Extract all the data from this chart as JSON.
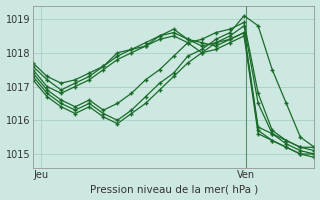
{
  "title": "",
  "xlabel": "Pression niveau de la mer( hPa )",
  "ylabel": "",
  "background_color": "#cce8e0",
  "grid_color": "#a8cfc8",
  "line_color": "#1a6b2a",
  "ylim": [
    1014.6,
    1019.4
  ],
  "xlim": [
    0,
    33
  ],
  "xtick_positions": [
    1,
    25
  ],
  "xtick_labels": [
    "Jeu",
    "Ven"
  ],
  "ytick_positions": [
    1015,
    1016,
    1017,
    1018,
    1019
  ],
  "series": [
    [
      1017.7,
      1017.3,
      1017.1,
      1017.2,
      1017.4,
      1017.6,
      1018.0,
      1018.1,
      1018.3,
      1018.5,
      1018.6,
      1018.4,
      1018.3,
      1018.2,
      1018.4,
      1018.6,
      1015.8,
      1015.6,
      1015.4,
      1015.2,
      1015.1
    ],
    [
      1017.5,
      1017.0,
      1016.8,
      1017.0,
      1017.2,
      1017.5,
      1017.8,
      1018.0,
      1018.2,
      1018.4,
      1018.5,
      1018.3,
      1018.0,
      1018.1,
      1018.3,
      1018.5,
      1015.6,
      1015.4,
      1015.2,
      1015.0,
      1014.9
    ],
    [
      1017.6,
      1017.2,
      1016.9,
      1017.1,
      1017.3,
      1017.6,
      1017.9,
      1018.1,
      1018.2,
      1018.5,
      1018.7,
      1018.4,
      1018.2,
      1018.3,
      1018.4,
      1018.6,
      1015.7,
      1015.4,
      1015.2,
      1015.0,
      1015.0
    ],
    [
      1017.4,
      1016.9,
      1016.6,
      1016.4,
      1016.6,
      1016.3,
      1016.5,
      1016.8,
      1017.2,
      1017.5,
      1017.9,
      1018.3,
      1018.4,
      1018.6,
      1018.7,
      1018.9,
      1016.8,
      1015.7,
      1015.4,
      1015.2,
      1015.2
    ],
    [
      1017.3,
      1016.8,
      1016.5,
      1016.3,
      1016.5,
      1016.2,
      1016.0,
      1016.3,
      1016.7,
      1017.1,
      1017.4,
      1017.9,
      1018.1,
      1018.4,
      1018.6,
      1019.1,
      1018.8,
      1017.5,
      1016.5,
      1015.5,
      1015.2
    ],
    [
      1017.2,
      1016.7,
      1016.4,
      1016.2,
      1016.4,
      1016.1,
      1015.9,
      1016.2,
      1016.5,
      1016.9,
      1017.3,
      1017.7,
      1018.0,
      1018.3,
      1018.5,
      1018.8,
      1016.5,
      1015.6,
      1015.3,
      1015.1,
      1015.0
    ]
  ],
  "vline_x": 25,
  "marker": "+",
  "marker_size": 3.5,
  "linewidth": 0.9
}
